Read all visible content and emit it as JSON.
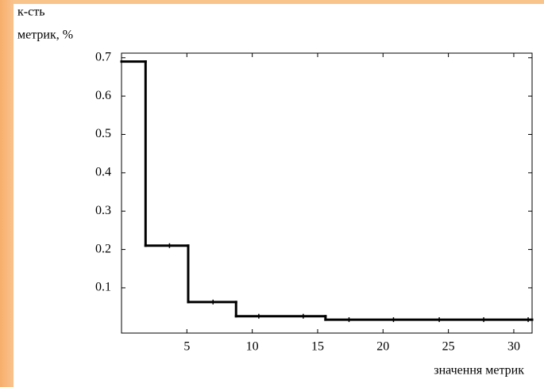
{
  "chart_data": {
    "type": "step",
    "ylabel": [
      "к-сть",
      "метрик, %"
    ],
    "xlabel": "значення метрик",
    "series": [
      {
        "x": [
          0,
          1.84,
          5.1,
          8.76,
          15.6
        ],
        "values": [
          0.69,
          0.21,
          0.063,
          0.026,
          0.017
        ],
        "color": "#000000"
      },
      {
        "x": [
          3.67,
          7.0,
          10.5,
          13.9,
          17.4,
          20.8,
          24.3,
          27.7,
          31.1
        ],
        "values": [
          0.21,
          0.063,
          0.026,
          0.026,
          0.017,
          0.017,
          0.017,
          0.017,
          0.017
        ],
        "color": "#000000"
      }
    ],
    "xlim": [
      0,
      31.4
    ],
    "ylim": [
      -0.018,
      0.712
    ],
    "xticks": [
      5,
      10,
      15,
      20,
      25,
      30
    ],
    "yticks": [
      0.1,
      0.2,
      0.3,
      0.4,
      0.5,
      0.6,
      0.7
    ]
  }
}
